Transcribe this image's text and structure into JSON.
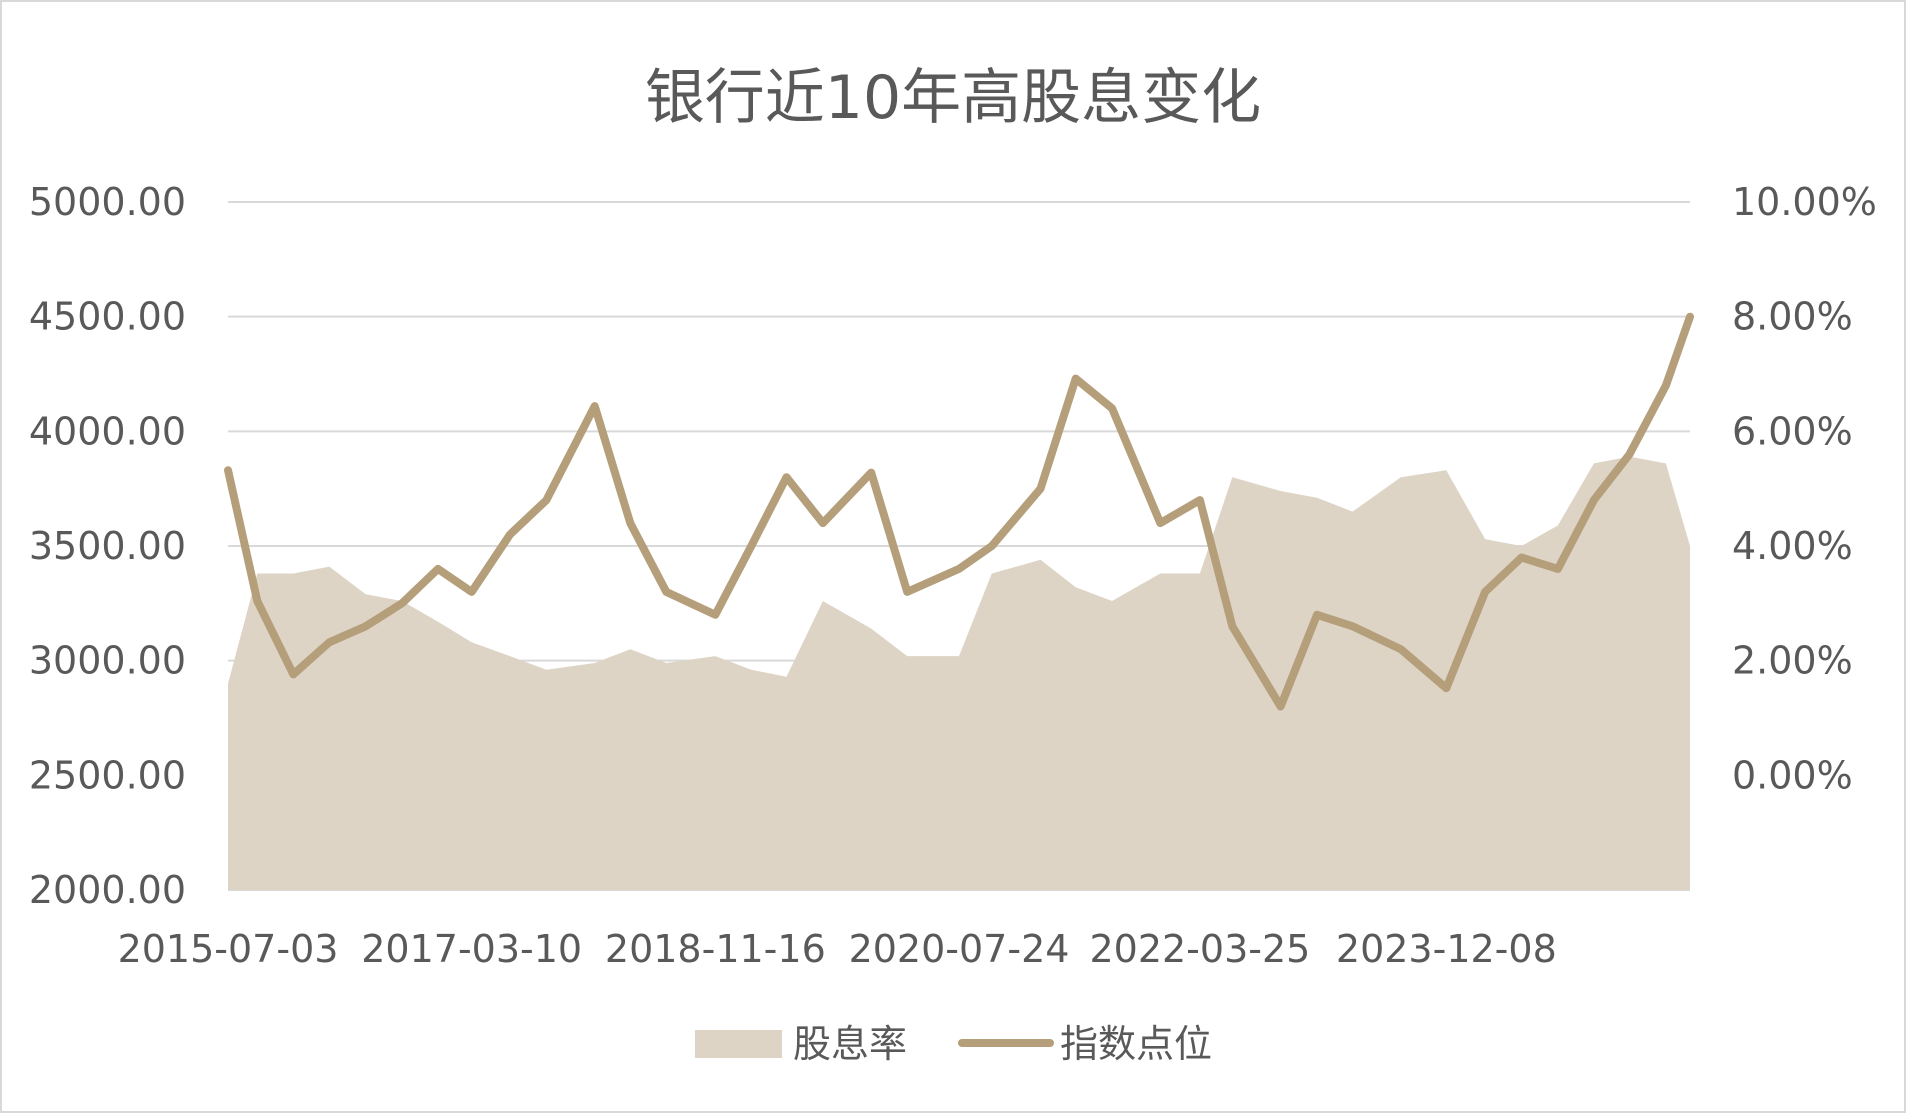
{
  "chart_data": {
    "type": "line",
    "title": "银行近10年高股息变化",
    "x_tick_labels": [
      "2015-07-03",
      "2017-03-10",
      "2018-11-16",
      "2020-07-24",
      "2022-03-25",
      "2023-12-08"
    ],
    "x": [
      "2015-07-03",
      "2015-09",
      "2015-12",
      "2016-03",
      "2016-06",
      "2016-09",
      "2016-12",
      "2017-03-10",
      "2017-06",
      "2017-09",
      "2018-01",
      "2018-04",
      "2018-07",
      "2018-11-16",
      "2019-02",
      "2019-05",
      "2019-08",
      "2019-12",
      "2020-03",
      "2020-07-24",
      "2020-10",
      "2021-02",
      "2021-05",
      "2021-08",
      "2021-12",
      "2022-03-25",
      "2022-06",
      "2022-10",
      "2023-01",
      "2023-04",
      "2023-08",
      "2023-12-08",
      "2024-03",
      "2024-06",
      "2024-09",
      "2024-12",
      "2025-03",
      "2025-06",
      "2025-08"
    ],
    "left_axis": {
      "ylim": [
        2000,
        5000
      ],
      "tick_labels": [
        "5000.00",
        "4500.00",
        "4000.00",
        "3500.00",
        "3000.00",
        "2500.00",
        "2000.00"
      ]
    },
    "right_axis": {
      "ylim": [
        0,
        10
      ],
      "unit": "%",
      "tick_labels": [
        "10.00%",
        "8.00%",
        "6.00%",
        "4.00%",
        "2.00%",
        "0.00%"
      ]
    },
    "series": [
      {
        "name": "股息率",
        "type": "area",
        "axis": "right",
        "color": "#ddd4c6",
        "values": [
          3.0,
          4.6,
          4.6,
          4.7,
          4.3,
          4.2,
          3.9,
          3.6,
          3.4,
          3.2,
          3.3,
          3.5,
          3.3,
          3.4,
          3.2,
          3.1,
          4.2,
          3.8,
          3.4,
          3.4,
          4.6,
          4.8,
          4.4,
          4.2,
          4.6,
          4.6,
          6.0,
          5.8,
          5.7,
          5.5,
          6.0,
          6.1,
          5.1,
          5.0,
          5.3,
          6.2,
          6.3,
          6.2,
          5.0
        ]
      },
      {
        "name": "指数点位",
        "type": "line",
        "axis": "left",
        "color": "#b59e7a",
        "values": [
          3830,
          3260,
          2940,
          3080,
          3150,
          3250,
          3400,
          3300,
          3550,
          3700,
          4110,
          3600,
          3300,
          3200,
          3500,
          3800,
          3600,
          3820,
          3300,
          3400,
          3500,
          3750,
          4230,
          4100,
          3600,
          3700,
          3150,
          2800,
          3200,
          3150,
          3050,
          2880,
          3300,
          3450,
          3400,
          3700,
          3900,
          4200,
          4500
        ]
      }
    ],
    "legend": {
      "position": "bottom",
      "entries": [
        "股息率",
        "指数点位"
      ]
    },
    "grid": "horizontal"
  }
}
